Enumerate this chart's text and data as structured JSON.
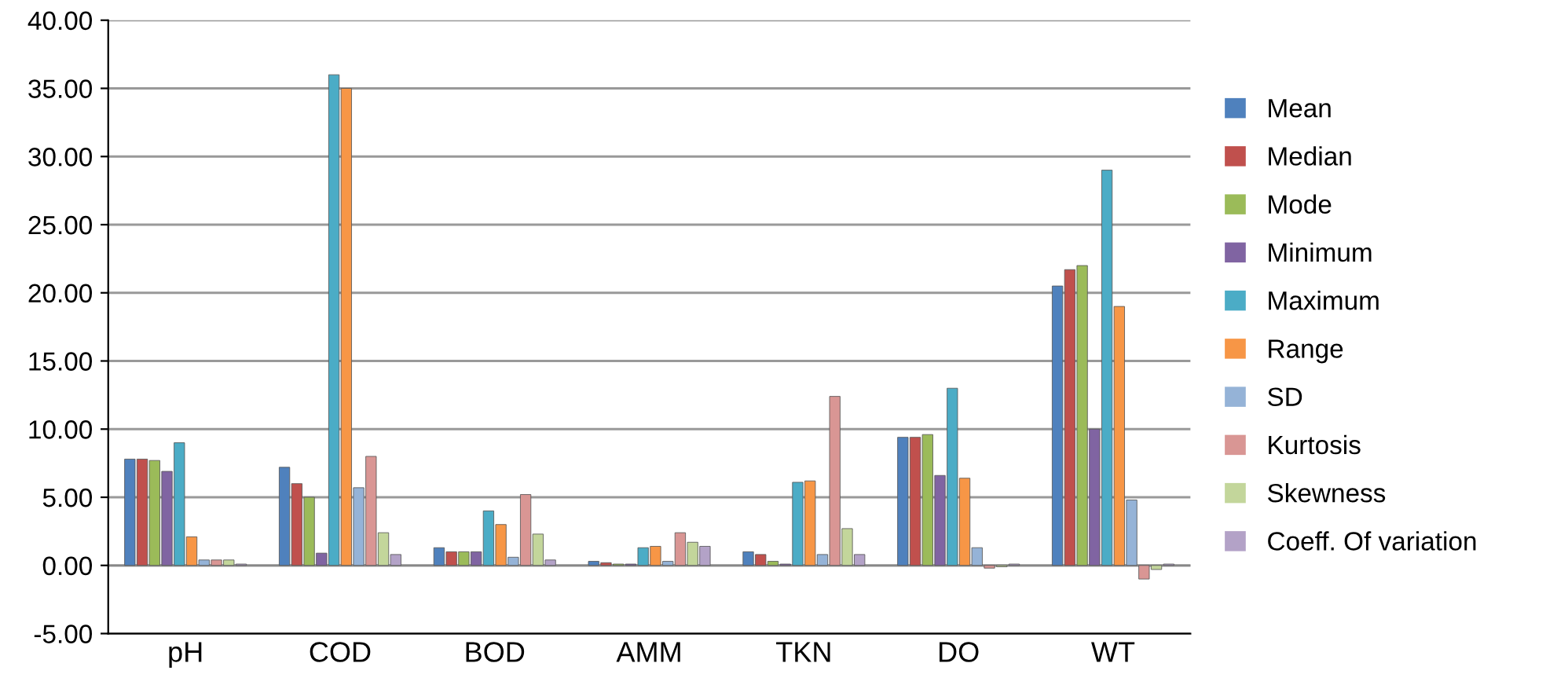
{
  "chart_data": {
    "type": "bar",
    "categories": [
      "pH",
      "COD",
      "BOD",
      "AMM",
      "TKN",
      "DO",
      "WT"
    ],
    "series": [
      {
        "name": "Mean",
        "color": "#4f81bd",
        "values": [
          7.8,
          7.2,
          1.3,
          0.3,
          1.0,
          9.4,
          20.5
        ]
      },
      {
        "name": "Median",
        "color": "#c0504d",
        "values": [
          7.8,
          6.0,
          1.0,
          0.2,
          0.8,
          9.4,
          21.7
        ]
      },
      {
        "name": "Mode",
        "color": "#9bbb59",
        "values": [
          7.7,
          5.0,
          1.0,
          0.1,
          0.3,
          9.6,
          22.0
        ]
      },
      {
        "name": "Minimum",
        "color": "#8064a2",
        "values": [
          6.9,
          0.9,
          1.0,
          0.1,
          0.1,
          6.6,
          10.0
        ]
      },
      {
        "name": "Maximum",
        "color": "#4bacc6",
        "values": [
          9.0,
          36.0,
          4.0,
          1.3,
          6.1,
          13.0,
          29.0
        ]
      },
      {
        "name": "Range",
        "color": "#f79646",
        "values": [
          2.1,
          35.0,
          3.0,
          1.4,
          6.2,
          6.4,
          19.0
        ]
      },
      {
        "name": "SD",
        "color": "#95b3d7",
        "values": [
          0.4,
          5.7,
          0.6,
          0.3,
          0.8,
          1.3,
          4.8
        ]
      },
      {
        "name": "Kurtosis",
        "color": "#d99694",
        "values": [
          0.4,
          8.0,
          5.2,
          2.4,
          12.4,
          -0.2,
          -1.0
        ]
      },
      {
        "name": "Skewness",
        "color": "#c3d69b",
        "values": [
          0.4,
          2.4,
          2.3,
          1.7,
          2.7,
          -0.1,
          -0.3
        ]
      },
      {
        "name": "Coeff. Of variation",
        "color": "#b3a2c7",
        "values": [
          0.1,
          0.8,
          0.4,
          1.4,
          0.8,
          0.1,
          0.1
        ]
      }
    ],
    "ylim": [
      -5,
      40
    ],
    "yticks": [
      {
        "value": -5,
        "label": "-5.00"
      },
      {
        "value": 0,
        "label": "0.00"
      },
      {
        "value": 5,
        "label": "5.00"
      },
      {
        "value": 10,
        "label": "10.00"
      },
      {
        "value": 15,
        "label": "15.00"
      },
      {
        "value": 20,
        "label": "20.00"
      },
      {
        "value": 25,
        "label": "25.00"
      },
      {
        "value": 30,
        "label": "30.00"
      },
      {
        "value": 35,
        "label": "35.00"
      },
      {
        "value": 40,
        "label": "40.00"
      }
    ],
    "grid": "y",
    "legend": "right"
  }
}
